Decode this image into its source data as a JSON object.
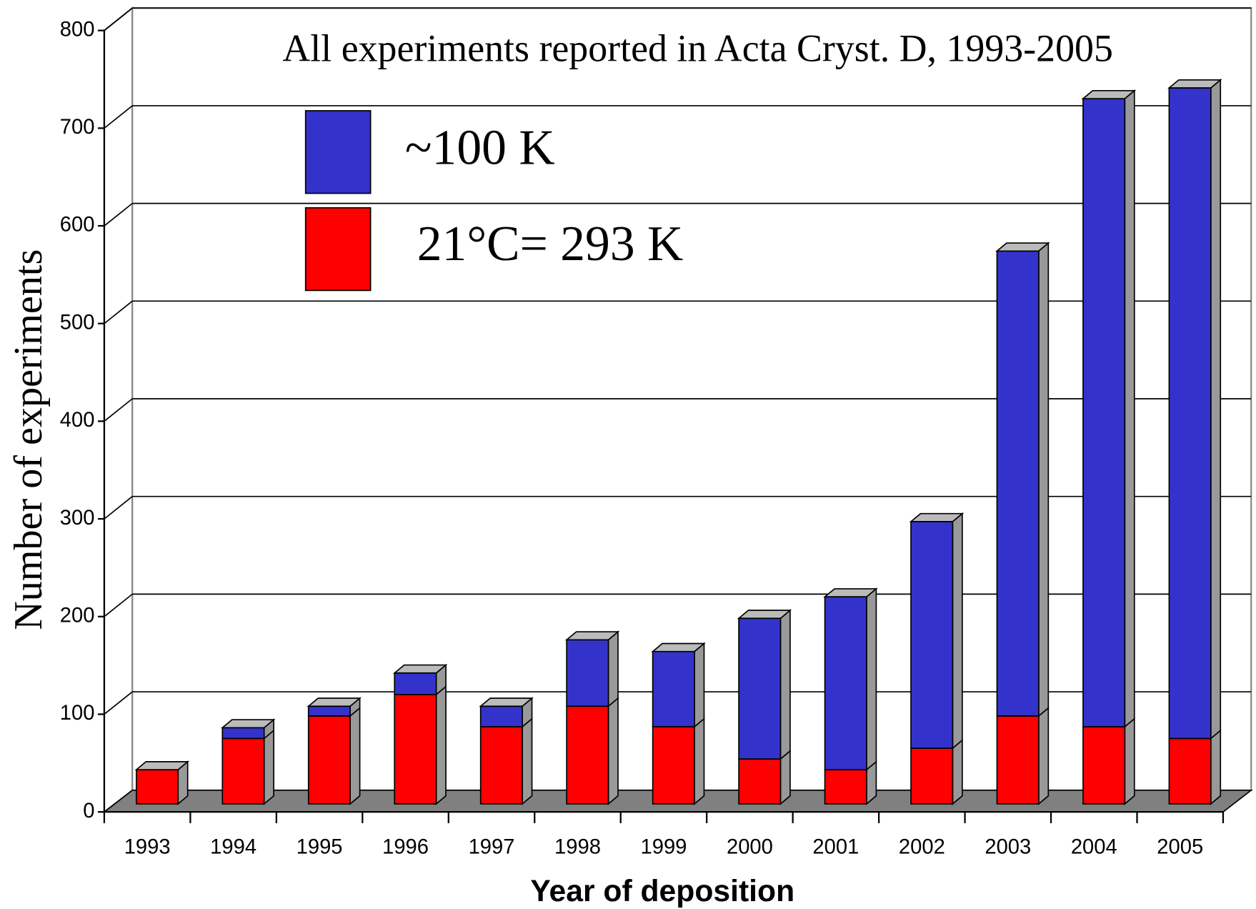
{
  "chart_data": {
    "type": "stacked-bar-3d",
    "title": "All experiments reported in Acta Cryst. D, 1993-2005",
    "x_label": "Year of deposition",
    "y_label": "Number of experiments",
    "categories": [
      "1993",
      "1994",
      "1995",
      "1996",
      "1997",
      "1998",
      "1999",
      "2000",
      "2001",
      "2002",
      "2003",
      "2004",
      "2005"
    ],
    "series": [
      {
        "name": "21°C= 293 K",
        "color": "#ff0000",
        "values": [
          35,
          67,
          90,
          112,
          79,
          100,
          79,
          46,
          35,
          57,
          90,
          79,
          67
        ]
      },
      {
        "name": "~100 K",
        "color": "#3333cc",
        "values": [
          0,
          11,
          10,
          22,
          21,
          68,
          77,
          144,
          177,
          232,
          476,
          643,
          666
        ]
      }
    ],
    "ylim": [
      0,
      800
    ],
    "yticks": [
      0,
      100,
      200,
      300,
      400,
      500,
      600,
      700,
      800
    ],
    "grid": true
  }
}
